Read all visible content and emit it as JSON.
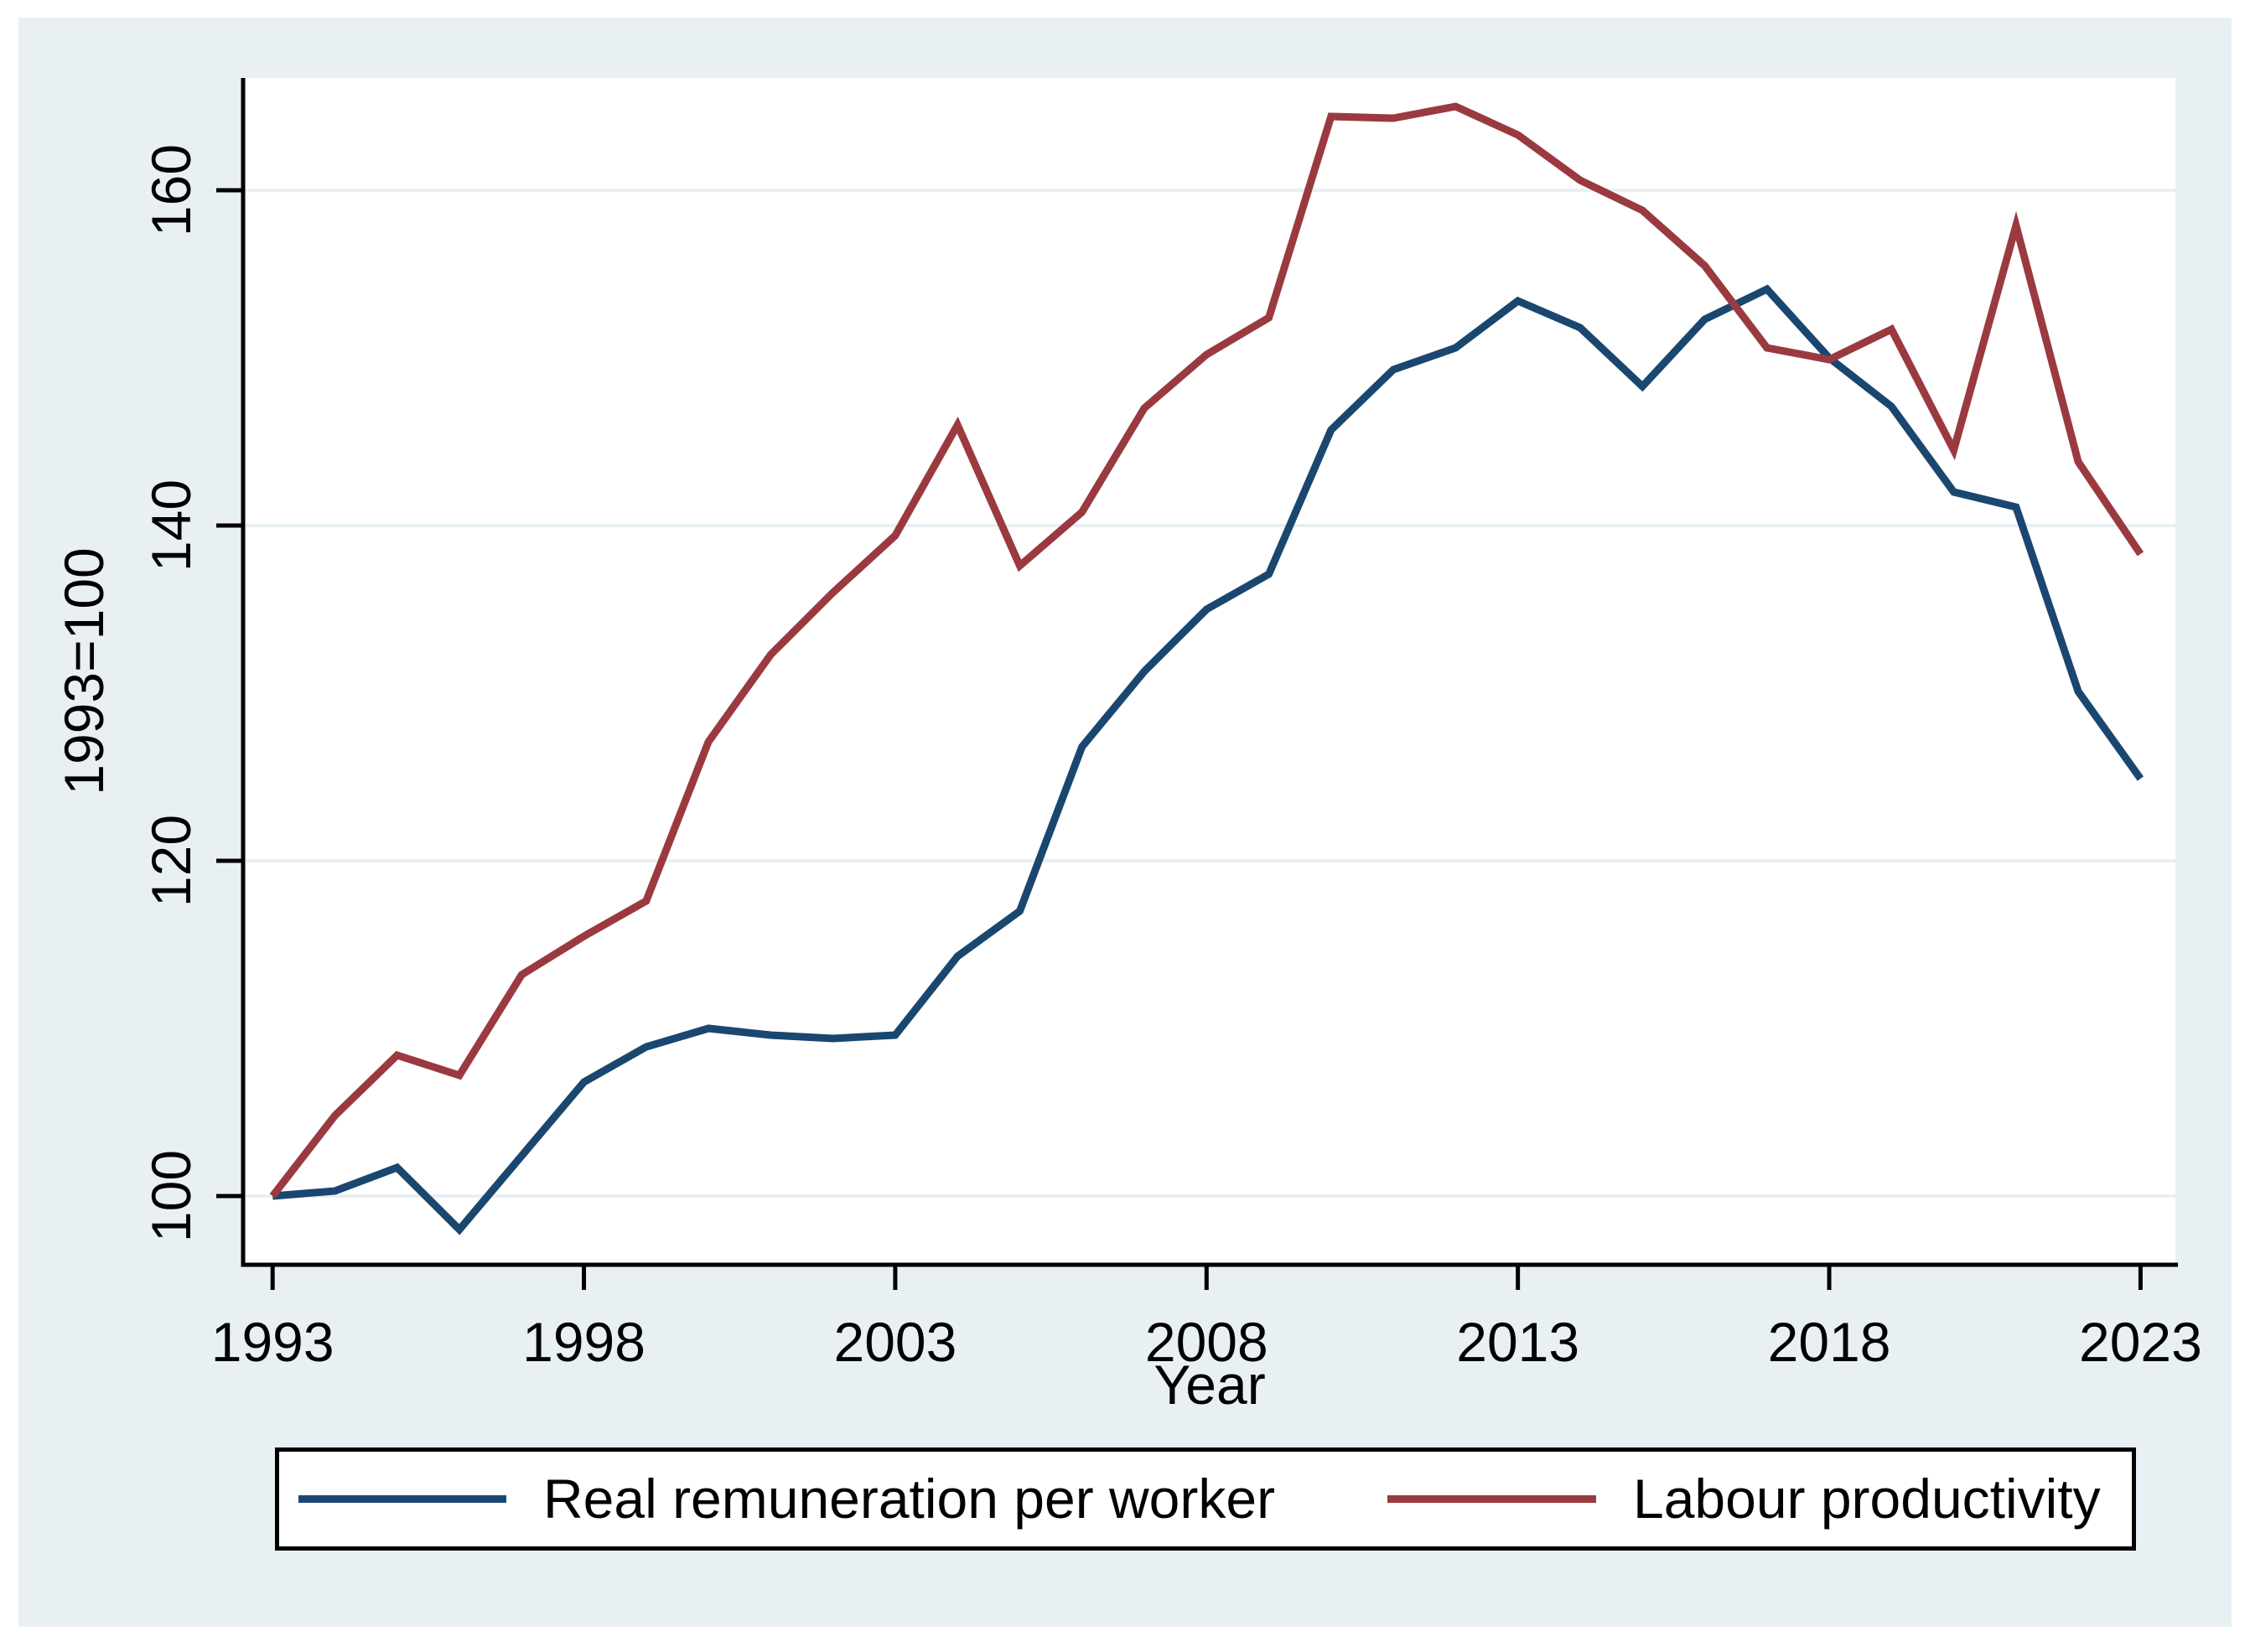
{
  "chart_data": {
    "type": "line",
    "title": "",
    "xlabel": "Year",
    "ylabel": "1993=100",
    "x": [
      1993,
      1994,
      1995,
      1996,
      1997,
      1998,
      1999,
      2000,
      2001,
      2002,
      2003,
      2004,
      2005,
      2006,
      2007,
      2008,
      2009,
      2010,
      2011,
      2012,
      2013,
      2014,
      2015,
      2016,
      2017,
      2018,
      2019,
      2020,
      2021,
      2022,
      2023
    ],
    "series": [
      {
        "name": "Real remuneration per worker",
        "color": "#1a476f",
        "values": [
          100,
          100.3,
          101.7,
          98,
          102.4,
          106.8,
          108.9,
          110,
          109.6,
          109.4,
          109.6,
          114.3,
          117,
          126.8,
          131.3,
          135,
          137.1,
          145.7,
          149.3,
          150.6,
          153.4,
          151.8,
          148.3,
          152.3,
          154.1,
          150,
          147.1,
          142,
          141.1,
          130.1,
          124.9
        ]
      },
      {
        "name": "Labour productivity",
        "color": "#9a3a40",
        "values": [
          100,
          104.8,
          108.4,
          107.2,
          113.2,
          115.5,
          117.6,
          127.1,
          132.3,
          136,
          139.4,
          146,
          137.6,
          140.8,
          147,
          150.2,
          152.4,
          164.4,
          164.3,
          165,
          163.3,
          160.6,
          158.8,
          155.5,
          150.6,
          149.9,
          151.7,
          144.5,
          157.9,
          143.8,
          138.3
        ]
      }
    ],
    "x_ticks": [
      1993,
      1998,
      2003,
      2008,
      2013,
      2018,
      2023
    ],
    "y_ticks": [
      100,
      120,
      140,
      160
    ],
    "xlim": [
      1992.56,
      2023.56
    ],
    "ylim": [
      95.9,
      166.7
    ],
    "grid": "horizontal",
    "legend_position": "bottom-center"
  },
  "colors": {
    "page_background": "#ffffff",
    "panel_background": "#e9f0f4",
    "plot_background": "#ffffff",
    "gridline": "#e9f0f4",
    "axis": "#000000",
    "navy": "#1a476f",
    "maroon": "#9a3a40",
    "legend_border": "#000000",
    "text": "#000000"
  }
}
